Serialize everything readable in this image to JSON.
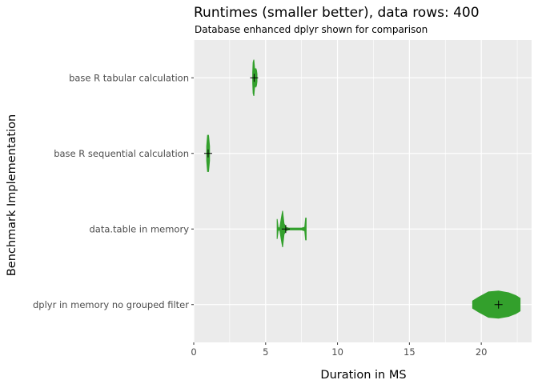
{
  "chart_data": {
    "type": "violin",
    "title": "Runtimes (smaller better), data rows: 400",
    "subtitle": "Database enhanced dplyr shown for comparison",
    "xlabel": "Duration in MS",
    "ylabel": "Benchmark Implementation",
    "xlim": [
      0,
      23.5
    ],
    "x_ticks": [
      0,
      5,
      10,
      15,
      20
    ],
    "grid": true,
    "fill_color": "#33a02c",
    "panel_color": "#ebebeb",
    "categories": [
      {
        "label": "base R tabular calculation",
        "mean": 4.2,
        "range": [
          4.1,
          4.4
        ],
        "profile": [
          [
            4.1,
            0.3
          ],
          [
            4.13,
            0.85
          ],
          [
            4.18,
            1.0
          ],
          [
            4.23,
            0.55
          ],
          [
            4.28,
            0.45
          ],
          [
            4.33,
            0.5
          ],
          [
            4.37,
            0.4
          ],
          [
            4.4,
            0.2
          ]
        ]
      },
      {
        "label": "base R sequential calculation",
        "mean": 1.0,
        "range": [
          0.9,
          1.1
        ],
        "profile": [
          [
            0.9,
            0.4
          ],
          [
            0.96,
            1.0
          ],
          [
            1.03,
            1.0
          ],
          [
            1.1,
            0.4
          ]
        ]
      },
      {
        "label": "data.table in memory",
        "mean": 6.4,
        "range": [
          5.8,
          7.8
        ],
        "profile": [
          [
            5.8,
            0.55
          ],
          [
            5.87,
            0.1
          ],
          [
            5.98,
            0.04
          ],
          [
            6.08,
            0.55
          ],
          [
            6.18,
            1.0
          ],
          [
            6.28,
            0.3
          ],
          [
            6.4,
            0.1
          ],
          [
            6.6,
            0.05
          ],
          [
            7.0,
            0.05
          ],
          [
            7.5,
            0.05
          ],
          [
            7.72,
            0.1
          ],
          [
            7.78,
            0.6
          ],
          [
            7.82,
            0.6
          ]
        ]
      },
      {
        "label": "dplyr in memory no grouped filter",
        "mean": 21.2,
        "range": [
          19.4,
          22.7
        ],
        "profile": [
          [
            19.4,
            0.2
          ],
          [
            19.8,
            0.4
          ],
          [
            20.5,
            0.7
          ],
          [
            21.2,
            0.75
          ],
          [
            21.9,
            0.65
          ],
          [
            22.4,
            0.5
          ],
          [
            22.7,
            0.35
          ]
        ]
      }
    ]
  }
}
